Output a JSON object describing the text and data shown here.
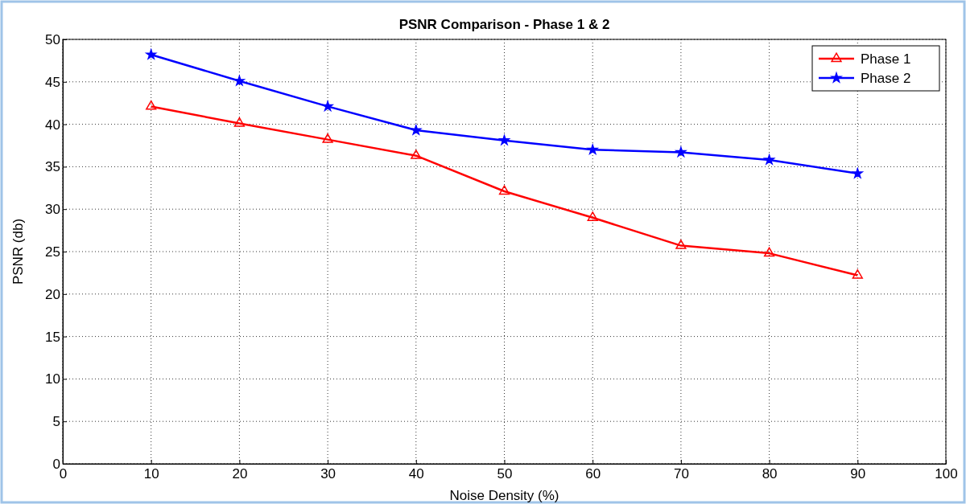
{
  "chart_data": {
    "type": "line",
    "title": "PSNR Comparison - Phase 1 & 2",
    "xlabel": "Noise Density (%)",
    "ylabel": "PSNR (db)",
    "x": [
      10,
      20,
      30,
      40,
      50,
      60,
      70,
      80,
      90
    ],
    "series": [
      {
        "name": "Phase 1",
        "color": "#ff0000",
        "marker": "triangle",
        "values": [
          42.1,
          40.1,
          38.2,
          36.3,
          32.1,
          29.0,
          25.7,
          24.8,
          22.2
        ]
      },
      {
        "name": "Phase 2",
        "color": "#0000ff",
        "marker": "star",
        "values": [
          48.2,
          45.1,
          42.1,
          39.3,
          38.1,
          37.0,
          36.7,
          35.8,
          34.2
        ]
      }
    ],
    "xlim": [
      0,
      100
    ],
    "xticks": [
      0,
      10,
      20,
      30,
      40,
      50,
      60,
      70,
      80,
      90,
      100
    ],
    "ylim": [
      0,
      50
    ],
    "yticks": [
      0,
      5,
      10,
      15,
      20,
      25,
      30,
      35,
      40,
      45,
      50
    ],
    "grid": true,
    "legend": "top right",
    "line_style": "solid"
  }
}
